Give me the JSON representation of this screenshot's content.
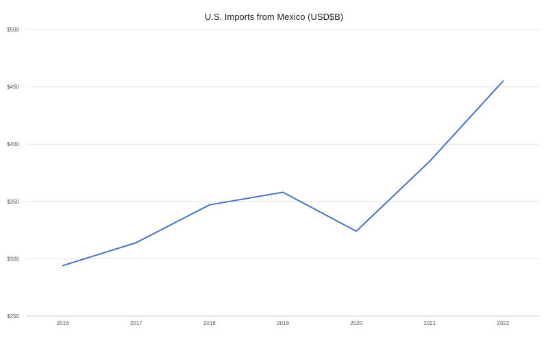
{
  "chart_data": {
    "type": "line",
    "title": "U.S. Imports from Mexico (USD$B)",
    "xlabel": "",
    "ylabel": "",
    "categories": [
      "2016",
      "2017",
      "2018",
      "2019",
      "2020",
      "2021",
      "2022"
    ],
    "series": [
      {
        "values": [
          294,
          314,
          347,
          358,
          324,
          385,
          455
        ],
        "color": "#4472C4"
      }
    ],
    "ylim": [
      250,
      500
    ],
    "yticks": [
      250,
      300,
      350,
      400,
      450,
      500
    ],
    "ytick_labels": [
      "$250",
      "$300",
      "$350",
      "$400",
      "$450",
      "$500"
    ],
    "grid": true,
    "legend": "none"
  }
}
